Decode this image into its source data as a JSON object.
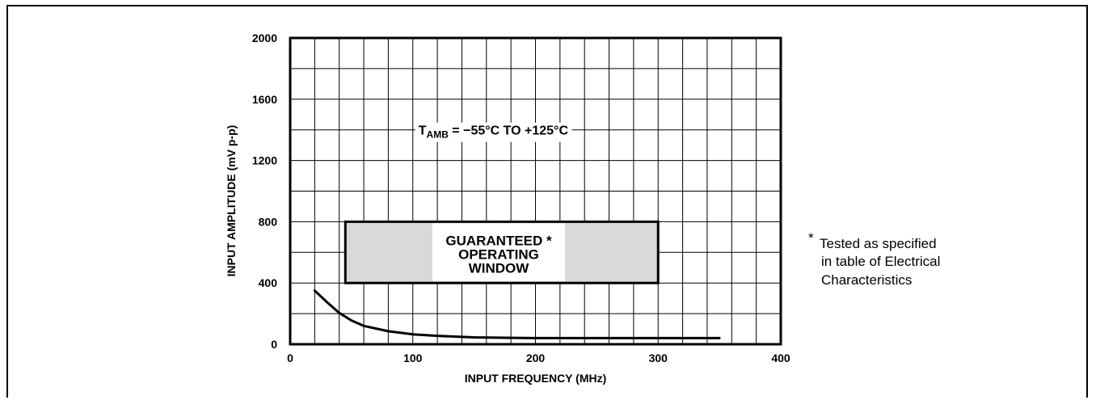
{
  "chart_data": {
    "type": "line",
    "title": "",
    "xlabel": "INPUT FREQUENCY (MHz)",
    "ylabel": "INPUT AMPLITUDE (mV p-p)",
    "xlim": [
      0,
      400
    ],
    "ylim": [
      0,
      2000
    ],
    "x_ticks": [
      "0",
      "100",
      "200",
      "300",
      "400"
    ],
    "y_ticks": [
      "0",
      "400",
      "800",
      "1200",
      "1600",
      "2000"
    ],
    "grid": true,
    "x_grid_step": 20,
    "y_grid_step": 200,
    "series": [
      {
        "x": [
          20,
          30,
          40,
          50,
          60,
          80,
          100,
          120,
          150,
          200,
          250,
          300,
          350
        ],
        "y": [
          350,
          275,
          205,
          155,
          120,
          85,
          65,
          55,
          45,
          40,
          40,
          40,
          40
        ]
      }
    ],
    "window": {
      "x_range": [
        45,
        300
      ],
      "y_range": [
        400,
        800
      ],
      "label_lines": [
        "GUARANTEED *",
        "OPERATING",
        "WINDOW"
      ]
    },
    "annotation": {
      "main": "T",
      "sub": "AMB",
      "rest": " = −55°C TO +125°C",
      "x": 100,
      "y": 1400
    },
    "footnote": {
      "star": "*",
      "lines": [
        "Tested as specified",
        "in table of Electrical",
        "Characteristics"
      ]
    }
  }
}
